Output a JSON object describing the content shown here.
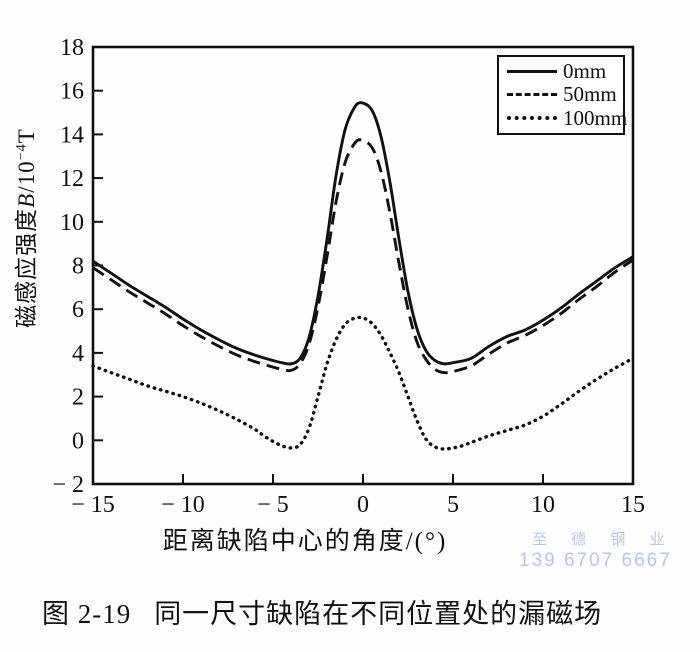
{
  "figure": {
    "caption_label": "图 2-19",
    "caption_text": "同一尺寸缺陷在不同位置处的漏磁场"
  },
  "watermark": {
    "line1": "至 德 钢 业",
    "line2": "139 6707 6667",
    "color": "#b5c6ee"
  },
  "chart_data": {
    "type": "line",
    "title": "",
    "xlabel": "距离缺陷中心的角度/(°)",
    "ylabel": "磁感应强度B/10⁻⁴T",
    "ylabel_parts": {
      "prefix": "磁感应强度",
      "var": "B",
      "unit_base": "/10",
      "exponent": "−4",
      "suffix": "T"
    },
    "xlim": [
      -15,
      15
    ],
    "ylim": [
      -2,
      18
    ],
    "x_ticks": [
      -15,
      -10,
      -5,
      0,
      5,
      10,
      15
    ],
    "y_ticks": [
      -2,
      0,
      2,
      4,
      6,
      8,
      10,
      12,
      14,
      16,
      18
    ],
    "grid": false,
    "legend_position": "top-right",
    "line_color": "#111111",
    "series": [
      {
        "name": "0mm",
        "style": "solid",
        "color": "#111111",
        "points": [
          [
            -15,
            8.2
          ],
          [
            -14,
            7.65
          ],
          [
            -13,
            7.1
          ],
          [
            -12,
            6.6
          ],
          [
            -11,
            6.1
          ],
          [
            -10,
            5.55
          ],
          [
            -9,
            5.05
          ],
          [
            -8,
            4.6
          ],
          [
            -7,
            4.2
          ],
          [
            -6,
            3.9
          ],
          [
            -5,
            3.65
          ],
          [
            -4.5,
            3.55
          ],
          [
            -4,
            3.5
          ],
          [
            -3.5,
            3.75
          ],
          [
            -3,
            4.7
          ],
          [
            -2.5,
            6.6
          ],
          [
            -2,
            9.2
          ],
          [
            -1.5,
            12.1
          ],
          [
            -1,
            14.2
          ],
          [
            -0.5,
            15.2
          ],
          [
            -0.1,
            15.45
          ],
          [
            0.5,
            15.1
          ],
          [
            1,
            13.9
          ],
          [
            1.5,
            11.8
          ],
          [
            2,
            9.2
          ],
          [
            2.5,
            6.8
          ],
          [
            3,
            5.1
          ],
          [
            3.5,
            4.1
          ],
          [
            4,
            3.65
          ],
          [
            4.5,
            3.5
          ],
          [
            5,
            3.55
          ],
          [
            6,
            3.75
          ],
          [
            7,
            4.3
          ],
          [
            8,
            4.75
          ],
          [
            9,
            5.05
          ],
          [
            10,
            5.5
          ],
          [
            11,
            6.05
          ],
          [
            12,
            6.7
          ],
          [
            13,
            7.3
          ],
          [
            14,
            7.9
          ],
          [
            15,
            8.4
          ]
        ]
      },
      {
        "name": "50mm",
        "style": "dashed",
        "color": "#111111",
        "points": [
          [
            -15,
            7.9
          ],
          [
            -14,
            7.35
          ],
          [
            -13,
            6.8
          ],
          [
            -12,
            6.3
          ],
          [
            -11,
            5.8
          ],
          [
            -10,
            5.25
          ],
          [
            -9,
            4.75
          ],
          [
            -8,
            4.3
          ],
          [
            -7,
            3.9
          ],
          [
            -6,
            3.6
          ],
          [
            -5,
            3.35
          ],
          [
            -4.5,
            3.25
          ],
          [
            -4,
            3.2
          ],
          [
            -3.5,
            3.5
          ],
          [
            -3,
            4.4
          ],
          [
            -2.5,
            6.1
          ],
          [
            -2,
            8.4
          ],
          [
            -1.5,
            10.9
          ],
          [
            -1,
            12.7
          ],
          [
            -0.5,
            13.55
          ],
          [
            -0.1,
            13.75
          ],
          [
            0.5,
            13.4
          ],
          [
            1,
            12.3
          ],
          [
            1.5,
            10.4
          ],
          [
            2,
            8.1
          ],
          [
            2.5,
            6.0
          ],
          [
            3,
            4.5
          ],
          [
            3.5,
            3.7
          ],
          [
            4,
            3.25
          ],
          [
            4.5,
            3.1
          ],
          [
            5,
            3.15
          ],
          [
            6,
            3.4
          ],
          [
            7,
            3.95
          ],
          [
            8,
            4.45
          ],
          [
            9,
            4.8
          ],
          [
            10,
            5.25
          ],
          [
            11,
            5.8
          ],
          [
            12,
            6.45
          ],
          [
            13,
            7.05
          ],
          [
            14,
            7.7
          ],
          [
            15,
            8.25
          ]
        ]
      },
      {
        "name": "100mm",
        "style": "dotted",
        "color": "#111111",
        "points": [
          [
            -15,
            3.4
          ],
          [
            -14,
            3.1
          ],
          [
            -13,
            2.8
          ],
          [
            -12,
            2.5
          ],
          [
            -11,
            2.25
          ],
          [
            -10,
            2.0
          ],
          [
            -9,
            1.7
          ],
          [
            -8,
            1.35
          ],
          [
            -7,
            0.95
          ],
          [
            -6,
            0.5
          ],
          [
            -5.5,
            0.2
          ],
          [
            -5,
            -0.05
          ],
          [
            -4.5,
            -0.25
          ],
          [
            -4,
            -0.35
          ],
          [
            -3.5,
            -0.2
          ],
          [
            -3,
            0.55
          ],
          [
            -2.5,
            2.0
          ],
          [
            -2,
            3.5
          ],
          [
            -1.5,
            4.6
          ],
          [
            -1,
            5.3
          ],
          [
            -0.5,
            5.58
          ],
          [
            0,
            5.6
          ],
          [
            0.5,
            5.35
          ],
          [
            1,
            4.8
          ],
          [
            1.5,
            4.0
          ],
          [
            2,
            3.1
          ],
          [
            2.5,
            2.0
          ],
          [
            3,
            0.9
          ],
          [
            3.5,
            0.05
          ],
          [
            4,
            -0.3
          ],
          [
            4.5,
            -0.4
          ],
          [
            5,
            -0.35
          ],
          [
            5.5,
            -0.25
          ],
          [
            6,
            -0.1
          ],
          [
            7,
            0.2
          ],
          [
            8,
            0.45
          ],
          [
            9,
            0.7
          ],
          [
            10,
            1.1
          ],
          [
            11,
            1.65
          ],
          [
            12,
            2.25
          ],
          [
            13,
            2.8
          ],
          [
            14,
            3.3
          ],
          [
            15,
            3.75
          ]
        ]
      }
    ]
  }
}
